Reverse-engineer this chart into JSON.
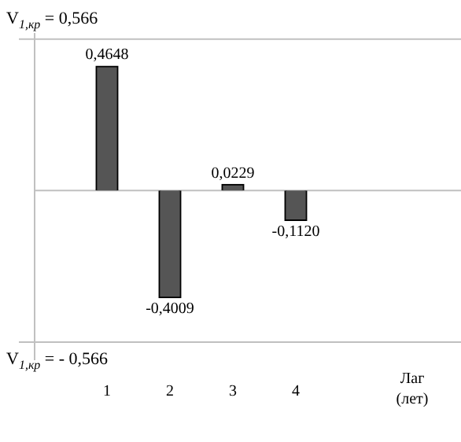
{
  "chart_data": {
    "type": "bar",
    "categories": [
      "1",
      "2",
      "3",
      "4"
    ],
    "values": [
      0.4648,
      -0.4009,
      0.0229,
      -0.112
    ],
    "value_labels": [
      "0,4648",
      "-0,4009",
      "0,0229",
      "-0,1120"
    ],
    "color": "#555555",
    "xlabel": "Лаг (лет)",
    "tick_labels": "x",
    "grid": false,
    "legend": false,
    "ref_lines": [
      {
        "axis": "y",
        "value": 0.566,
        "label": "V$_{1,кр}$ = 0,566",
        "color": "#c0c0c0"
      },
      {
        "axis": "y",
        "value": -0.566,
        "label": "V$_{1,кр}$ = - 0,566",
        "color": "#c0c0c0"
      }
    ]
  }
}
